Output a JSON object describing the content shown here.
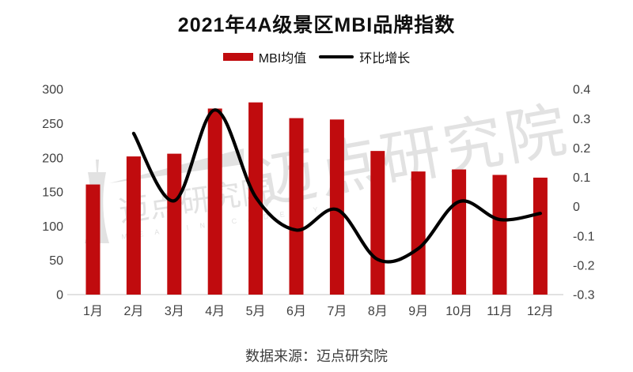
{
  "header": {
    "title": "2021年4A级景区MBI品牌指数"
  },
  "legend": {
    "items": [
      {
        "label": "MBI均值",
        "type": "bar",
        "color": "#c00b0e"
      },
      {
        "label": "环比增长",
        "type": "line",
        "color": "#000000"
      }
    ]
  },
  "footer": {
    "source": "数据来源：迈点研究院"
  },
  "watermark": {
    "text_large": "迈点研究院",
    "text_small": "迈点研究院",
    "subtext": "M E A D I N  A C A D E M Y",
    "color": "#e2e2e2"
  },
  "chart_data": {
    "type": "bar",
    "subtype": "combo-bar-line",
    "title": "2021年4A级景区MBI品牌指数",
    "categories": [
      "1月",
      "2月",
      "3月",
      "4月",
      "5月",
      "6月",
      "7月",
      "8月",
      "9月",
      "10月",
      "11月",
      "12月"
    ],
    "series": [
      {
        "name": "MBI均值",
        "type": "bar",
        "axis": "left",
        "color": "#c00b0e",
        "values": [
          161,
          202,
          206,
          272,
          281,
          258,
          256,
          210,
          180,
          183,
          175,
          171
        ]
      },
      {
        "name": "环比增长",
        "type": "line",
        "axis": "right",
        "color": "#000000",
        "smooth": true,
        "values": [
          null,
          0.25,
          0.02,
          0.33,
          0.033,
          -0.08,
          -0.01,
          -0.18,
          -0.143,
          0.017,
          -0.044,
          -0.023
        ]
      }
    ],
    "left_axis": {
      "min": 0,
      "max": 300,
      "step": 50,
      "ticks": [
        300,
        250,
        200,
        150,
        100,
        50,
        0
      ]
    },
    "right_axis": {
      "min": -0.3,
      "max": 0.4,
      "step": 0.1,
      "ticks": [
        0.4,
        0.3,
        0.2,
        0.1,
        0,
        -0.1,
        -0.2,
        -0.3
      ]
    },
    "grid": false,
    "legend_position": "top",
    "axis_line_color": "#d9d9d9",
    "tick_label_color": "#404040",
    "source": "数据来源：迈点研究院"
  }
}
